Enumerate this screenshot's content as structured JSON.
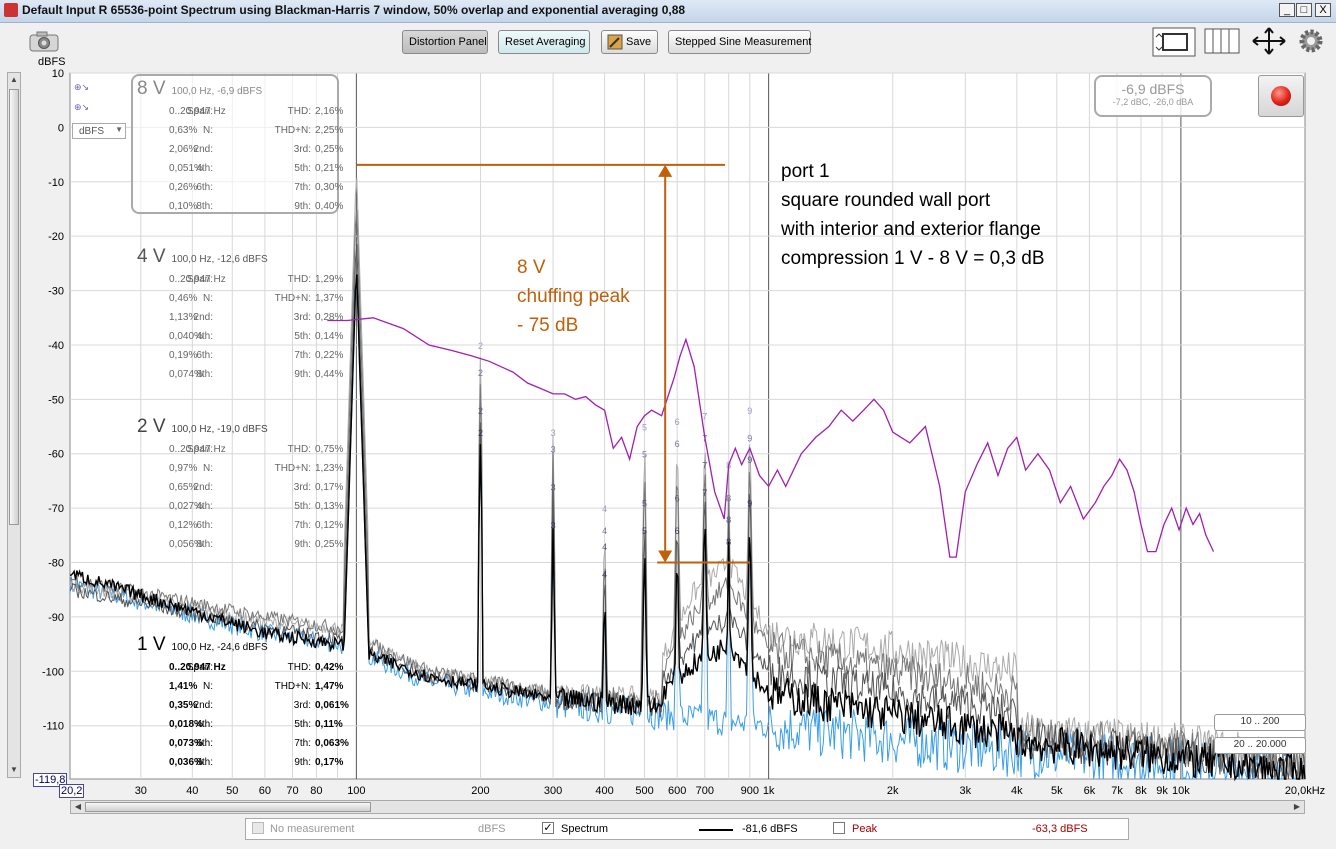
{
  "window": {
    "title": "Default Input R 65536-point Spectrum using Blackman-Harris 7 window, 50% overlap and exponential averaging 0,88",
    "minimize": "_",
    "maximize": "□",
    "close": "X"
  },
  "toolbar": {
    "distortion_panel": "Distortion Panel",
    "reset_averaging": "Reset Averaging",
    "save": "Save",
    "stepped_sine": "Stepped Sine Measurement"
  },
  "axis": {
    "y_unit": "dBFS",
    "y_unit_select": "dBFS",
    "y_min_readout": "-119,8",
    "x_min_readout": "20,2"
  },
  "level_display": {
    "main": "-6,9 dBFS",
    "sub": "-7,2 dBC, -26,0 dBA"
  },
  "ranges": {
    "low": "10 .. 200",
    "high": "20 .. 20.000"
  },
  "panels": [
    {
      "id": "8v",
      "level": "8 V",
      "summary": "100,0 Hz, -6,9 dBFS",
      "span_label": "Span:",
      "span": "0..20.947 Hz",
      "thd_label": "THD:",
      "thd": "2,16%",
      "n_label": "N:",
      "n": "0,63%",
      "thdn_label": "THD+N:",
      "thdn": "2,25%",
      "h2_label": "2nd:",
      "h2": "2,06%",
      "h3_label": "3rd:",
      "h3": "0,25%",
      "h4_label": "4th:",
      "h4": "0,051%",
      "h5_label": "5th:",
      "h5": "0,21%",
      "h6_label": "6th:",
      "h6": "0,26%",
      "h7_label": "7th:",
      "h7": "0,30%",
      "h8_label": "8th:",
      "h8": "0,10%",
      "h9_label": "9th:",
      "h9": "0,40%"
    },
    {
      "id": "4v",
      "level": "4 V",
      "summary": "100,0 Hz, -12,6 dBFS",
      "span_label": "Span:",
      "span": "0..20.947 Hz",
      "thd_label": "THD:",
      "thd": "1,29%",
      "n_label": "N:",
      "n": "0,46%",
      "thdn_label": "THD+N:",
      "thdn": "1,37%",
      "h2_label": "2nd:",
      "h2": "1,13%",
      "h3_label": "3rd:",
      "h3": "0,28%",
      "h4_label": "4th:",
      "h4": "0,040%",
      "h5_label": "5th:",
      "h5": "0,14%",
      "h6_label": "6th:",
      "h6": "0,19%",
      "h7_label": "7th:",
      "h7": "0,22%",
      "h8_label": "8th:",
      "h8": "0,074%",
      "h9_label": "9th:",
      "h9": "0,44%"
    },
    {
      "id": "2v",
      "level": "2 V",
      "summary": "100,0 Hz, -19,0 dBFS",
      "span_label": "Span:",
      "span": "0..20.947 Hz",
      "thd_label": "THD:",
      "thd": "0,75%",
      "n_label": "N:",
      "n": "0,97%",
      "thdn_label": "THD+N:",
      "thdn": "1,23%",
      "h2_label": "2nd:",
      "h2": "0,65%",
      "h3_label": "3rd:",
      "h3": "0,17%",
      "h4_label": "4th:",
      "h4": "0,027%",
      "h5_label": "5th:",
      "h5": "0,13%",
      "h6_label": "6th:",
      "h6": "0,12%",
      "h7_label": "7th:",
      "h7": "0,12%",
      "h8_label": "8th:",
      "h8": "0,056%",
      "h9_label": "9th:",
      "h9": "0,25%"
    },
    {
      "id": "1v",
      "level": "1 V",
      "summary": "100,0 Hz, -24,6 dBFS",
      "span_label": "Span:",
      "span": "0..20.947 Hz",
      "thd_label": "THD:",
      "thd": "0,42%",
      "n_label": "N:",
      "n": "1,41%",
      "thdn_label": "THD+N:",
      "thdn": "1,47%",
      "h2_label": "2nd:",
      "h2": "0,35%",
      "h3_label": "3rd:",
      "h3": "0,061%",
      "h4_label": "4th:",
      "h4": "0,018%",
      "h5_label": "5th:",
      "h5": "0,11%",
      "h6_label": "6th:",
      "h6": "0,073%",
      "h7_label": "7th:",
      "h7": "0,063%",
      "h8_label": "8th:",
      "h8": "0,036%",
      "h9_label": "9th:",
      "h9": "0,17%"
    }
  ],
  "annotations": {
    "port_lines": [
      "port 1",
      "square rounded wall port",
      "with interior and exterior flange",
      "compression 1 V - 8 V = 0,3 dB"
    ],
    "chuff_lines": [
      "8 V",
      "chuffing peak",
      "- 75 dB"
    ],
    "port_color": "#000000",
    "chuff_color": "#c0600a"
  },
  "legend": {
    "no_measurement": "No measurement",
    "no_measurement_unit": "dBFS",
    "spectrum_check": "✓",
    "spectrum": "Spectrum",
    "spectrum_value": "-81,6 dBFS",
    "peak": "Peak",
    "peak_value": "-63,3 dBFS"
  },
  "chart_data": {
    "type": "line",
    "xscale": "log",
    "xlim": [
      20.2,
      20000
    ],
    "ylim": [
      -119.8,
      10
    ],
    "ylabel": "dBFS",
    "y_ticks": [
      10,
      0,
      -10,
      -20,
      -30,
      -40,
      -50,
      -60,
      -70,
      -80,
      -90,
      -100,
      -110
    ],
    "x_ticks": [
      {
        "f": 30,
        "label": "30"
      },
      {
        "f": 40,
        "label": "40"
      },
      {
        "f": 50,
        "label": "50"
      },
      {
        "f": 60,
        "label": "60"
      },
      {
        "f": 70,
        "label": "70"
      },
      {
        "f": 80,
        "label": "80"
      },
      {
        "f": 100,
        "label": "100"
      },
      {
        "f": 200,
        "label": "200"
      },
      {
        "f": 300,
        "label": "300"
      },
      {
        "f": 400,
        "label": "400"
      },
      {
        "f": 500,
        "label": "500"
      },
      {
        "f": 600,
        "label": "600"
      },
      {
        "f": 700,
        "label": "700"
      },
      {
        "f": 900,
        "label": "900"
      },
      {
        "f": 1000,
        "label": "1k"
      },
      {
        "f": 2000,
        "label": "2k"
      },
      {
        "f": 3000,
        "label": "3k"
      },
      {
        "f": 4000,
        "label": "4k"
      },
      {
        "f": 5000,
        "label": "5k"
      },
      {
        "f": 6000,
        "label": "6k"
      },
      {
        "f": 7000,
        "label": "7k"
      },
      {
        "f": 8000,
        "label": "8k"
      },
      {
        "f": 9000,
        "label": "9k"
      },
      {
        "f": 10000,
        "label": "10k"
      },
      {
        "f": 20000,
        "label": "20,0kHz"
      }
    ],
    "harmonics": [
      {
        "n": 2,
        "f": 200,
        "levels": [
          -40,
          -45,
          -52,
          -56
        ]
      },
      {
        "n": 3,
        "f": 300,
        "levels": [
          -56,
          -59,
          -66,
          -73
        ]
      },
      {
        "n": 4,
        "f": 400,
        "levels": [
          -70,
          -74,
          -77,
          -82
        ]
      },
      {
        "n": 5,
        "f": 500,
        "levels": [
          -55,
          -60,
          -69,
          -74
        ]
      },
      {
        "n": 6,
        "f": 600,
        "levels": [
          -54,
          -58,
          -68,
          -74
        ]
      },
      {
        "n": 7,
        "f": 700,
        "levels": [
          -53,
          -57,
          -62,
          -67
        ]
      },
      {
        "n": 8,
        "f": 800,
        "levels": [
          -62,
          -68,
          -72,
          -76
        ]
      },
      {
        "n": 9,
        "f": 900,
        "levels": [
          -52,
          -57,
          -61,
          -69
        ]
      }
    ],
    "fundamental": {
      "f": 100,
      "levels": [
        -6.9,
        -12.6,
        -19.0,
        -24.6
      ]
    },
    "series": [
      {
        "name": "8 V",
        "color": "#aaaaaa",
        "noise_floor": [
          [
            20.2,
            -84
          ],
          [
            60,
            -91
          ],
          [
            90,
            -92
          ],
          [
            150,
            -100
          ],
          [
            300,
            -104
          ],
          [
            1000,
            -106
          ],
          [
            3000,
            -110
          ],
          [
            10000,
            -113
          ],
          [
            20000,
            -116
          ]
        ],
        "hump": [
          [
            550,
            -98
          ],
          [
            650,
            -86
          ],
          [
            800,
            -80
          ],
          [
            1000,
            -93
          ],
          [
            2000,
            -96
          ],
          [
            4000,
            -100
          ]
        ]
      },
      {
        "name": "4 V",
        "color": "#777777",
        "noise_floor": [
          [
            20.2,
            -83
          ],
          [
            60,
            -90
          ],
          [
            90,
            -92
          ],
          [
            150,
            -100
          ],
          [
            300,
            -104
          ],
          [
            1000,
            -107
          ],
          [
            3000,
            -111
          ],
          [
            10000,
            -114
          ],
          [
            20000,
            -117
          ]
        ],
        "hump": [
          [
            550,
            -100
          ],
          [
            650,
            -90
          ],
          [
            800,
            -84
          ],
          [
            1000,
            -96
          ],
          [
            2000,
            -100
          ],
          [
            4000,
            -104
          ]
        ]
      },
      {
        "name": "2 V",
        "color": "#555555",
        "noise_floor": [
          [
            20.2,
            -85
          ],
          [
            60,
            -92
          ],
          [
            90,
            -94
          ],
          [
            150,
            -101
          ],
          [
            300,
            -105
          ],
          [
            1000,
            -108
          ],
          [
            3000,
            -112
          ],
          [
            10000,
            -115
          ],
          [
            20000,
            -118
          ]
        ],
        "hump": [
          [
            550,
            -102
          ],
          [
            650,
            -95
          ],
          [
            800,
            -90
          ],
          [
            1000,
            -100
          ],
          [
            2000,
            -104
          ],
          [
            4000,
            -108
          ]
        ]
      },
      {
        "name": "1 V",
        "color": "#000000",
        "noise_floor": [
          [
            20.2,
            -82
          ],
          [
            60,
            -93
          ],
          [
            90,
            -95
          ],
          [
            150,
            -101
          ],
          [
            300,
            -105
          ],
          [
            1000,
            -108
          ],
          [
            3000,
            -112
          ],
          [
            10000,
            -116
          ],
          [
            20000,
            -119
          ]
        ],
        "hump": [
          [
            550,
            -104
          ],
          [
            650,
            -99
          ],
          [
            800,
            -95
          ],
          [
            1000,
            -104
          ],
          [
            2000,
            -108
          ],
          [
            4000,
            -112
          ]
        ]
      },
      {
        "name": "Spectrum",
        "color": "#3a9ee8",
        "noise_floor": [
          [
            20.2,
            -84
          ],
          [
            60,
            -93
          ],
          [
            90,
            -95
          ],
          [
            150,
            -102
          ],
          [
            300,
            -106
          ],
          [
            1000,
            -110
          ],
          [
            3000,
            -114
          ],
          [
            10000,
            -117
          ],
          [
            20000,
            -119
          ]
        ],
        "hump": []
      }
    ],
    "chuffing_trace": {
      "color": "#a020b0",
      "points": [
        [
          85,
          -35.5
        ],
        [
          95,
          -35.5
        ],
        [
          110,
          -35
        ],
        [
          130,
          -37
        ],
        [
          150,
          -40
        ],
        [
          170,
          -41
        ],
        [
          190,
          -42
        ],
        [
          210,
          -43
        ],
        [
          240,
          -45
        ],
        [
          260,
          -47
        ],
        [
          280,
          -48
        ],
        [
          300,
          -49
        ],
        [
          320,
          -49
        ],
        [
          340,
          -50
        ],
        [
          360,
          -49.5
        ],
        [
          380,
          -51
        ],
        [
          400,
          -52
        ],
        [
          420,
          -59
        ],
        [
          440,
          -57
        ],
        [
          460,
          -61
        ],
        [
          480,
          -55
        ],
        [
          500,
          -53
        ],
        [
          520,
          -52
        ],
        [
          550,
          -53
        ],
        [
          590,
          -46
        ],
        [
          610,
          -42
        ],
        [
          630,
          -39
        ],
        [
          660,
          -44
        ],
        [
          700,
          -57
        ],
        [
          740,
          -67
        ],
        [
          780,
          -72
        ],
        [
          800,
          -62
        ],
        [
          830,
          -59
        ],
        [
          860,
          -62
        ],
        [
          900,
          -59
        ],
        [
          950,
          -64
        ],
        [
          1000,
          -66
        ],
        [
          1050,
          -63
        ],
        [
          1100,
          -66
        ],
        [
          1200,
          -60
        ],
        [
          1300,
          -57
        ],
        [
          1400,
          -55
        ],
        [
          1500,
          -52
        ],
        [
          1600,
          -54
        ],
        [
          1700,
          -52
        ],
        [
          1800,
          -50
        ],
        [
          1900,
          -52
        ],
        [
          2000,
          -56
        ],
        [
          2200,
          -58
        ],
        [
          2400,
          -55
        ],
        [
          2600,
          -66
        ],
        [
          2750,
          -79
        ],
        [
          2850,
          -79
        ],
        [
          3000,
          -67
        ],
        [
          3200,
          -62
        ],
        [
          3400,
          -58
        ],
        [
          3600,
          -64
        ],
        [
          3800,
          -59
        ],
        [
          4000,
          -57
        ],
        [
          4200,
          -63
        ],
        [
          4500,
          -60
        ],
        [
          4800,
          -63
        ],
        [
          5100,
          -69
        ],
        [
          5400,
          -66
        ],
        [
          5800,
          -72
        ],
        [
          6200,
          -69
        ],
        [
          6500,
          -66
        ],
        [
          6800,
          -64
        ],
        [
          7100,
          -61
        ],
        [
          7400,
          -63
        ],
        [
          7700,
          -67
        ],
        [
          8000,
          -73
        ],
        [
          8300,
          -78
        ],
        [
          8700,
          -78
        ],
        [
          9100,
          -73
        ],
        [
          9500,
          -70
        ],
        [
          9900,
          -74
        ],
        [
          10300,
          -70
        ],
        [
          10700,
          -73
        ],
        [
          11100,
          -71
        ],
        [
          11500,
          -75
        ],
        [
          12000,
          -78
        ]
      ]
    },
    "chuff_marker": {
      "f": 600,
      "top": -6.9,
      "bottom": -80
    }
  }
}
